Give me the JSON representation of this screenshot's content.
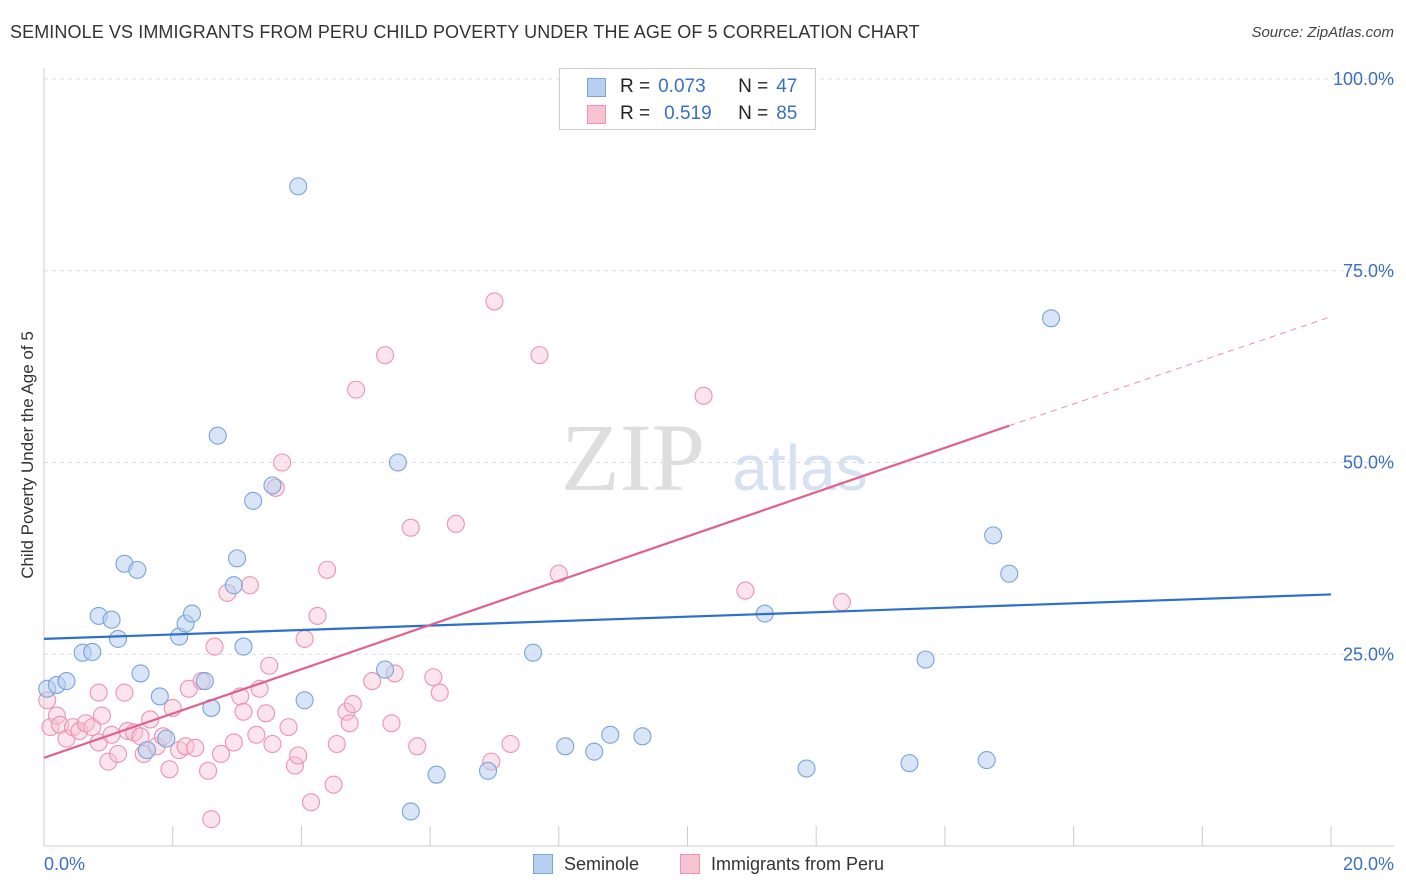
{
  "title": "SEMINOLE VS IMMIGRANTS FROM PERU CHILD POVERTY UNDER THE AGE OF 5 CORRELATION CHART",
  "source": "Source: ZipAtlas.com",
  "watermark": {
    "zip": "ZIP",
    "atlas": "atlas"
  },
  "legend": {
    "rows": [
      {
        "r_label": "R =",
        "r_value": "0.073",
        "n_label": "N =",
        "n_value": "47"
      },
      {
        "r_label": "R =",
        "r_value": "0.519",
        "n_label": "N =",
        "n_value": "85"
      }
    ]
  },
  "bottom_legend": {
    "seminole": "Seminole",
    "peru": "Immigrants from Peru"
  },
  "colors": {
    "seminole_fill": "#b8d0f0",
    "seminole_stroke": "#7aa3dc",
    "seminole_line": "#2e6fc9",
    "peru_fill": "#f7c3d3",
    "peru_stroke": "#ec93b0",
    "peru_line": "#e0608e",
    "tick_label": "#3a6fc4",
    "grid": "#dddddd"
  },
  "chart_data": {
    "type": "scatter",
    "title": "SEMINOLE VS IMMIGRANTS FROM PERU CHILD POVERTY UNDER THE AGE OF 5 CORRELATION CHART",
    "xlabel": "",
    "ylabel": "Child Poverty Under the Age of 5",
    "xlim": [
      0,
      20
    ],
    "ylim": [
      0,
      100
    ],
    "x_tick_labels": [
      {
        "value": 0,
        "label": "0.0%"
      },
      {
        "value": 20,
        "label": "20.0%"
      }
    ],
    "y_tick_labels": [
      {
        "value": 25,
        "label": "25.0%"
      },
      {
        "value": 50,
        "label": "50.0%"
      },
      {
        "value": 75,
        "label": "75.0%"
      },
      {
        "value": 100,
        "label": "100.0%"
      }
    ],
    "x_minor_ticks": [
      2,
      4,
      6,
      8,
      10,
      12,
      14,
      16,
      18,
      20
    ],
    "grid": true,
    "series": [
      {
        "name": "Seminole",
        "r": 0.073,
        "n": 47,
        "trend": {
          "x0": 0,
          "y0": 27.0,
          "x1": 20,
          "y1": 32.8,
          "dashed_to": null
        },
        "points": [
          [
            0.05,
            20.5
          ],
          [
            0.2,
            21.0
          ],
          [
            0.35,
            21.5
          ],
          [
            0.6,
            25.2
          ],
          [
            0.75,
            25.3
          ],
          [
            0.85,
            30.0
          ],
          [
            1.05,
            29.5
          ],
          [
            1.15,
            27.0
          ],
          [
            1.25,
            36.8
          ],
          [
            1.45,
            36.0
          ],
          [
            1.5,
            22.5
          ],
          [
            1.6,
            12.5
          ],
          [
            1.8,
            19.5
          ],
          [
            1.9,
            14.0
          ],
          [
            2.1,
            27.3
          ],
          [
            2.2,
            29.0
          ],
          [
            2.3,
            30.3
          ],
          [
            2.5,
            21.5
          ],
          [
            2.6,
            18.0
          ],
          [
            2.7,
            53.5
          ],
          [
            2.95,
            34.0
          ],
          [
            3.0,
            37.5
          ],
          [
            3.1,
            26.0
          ],
          [
            3.25,
            45.0
          ],
          [
            3.55,
            47.0
          ],
          [
            3.95,
            86.0
          ],
          [
            4.05,
            19.0
          ],
          [
            5.3,
            23.0
          ],
          [
            5.5,
            50.0
          ],
          [
            5.7,
            4.5
          ],
          [
            6.1,
            9.3
          ],
          [
            6.9,
            9.8
          ],
          [
            7.6,
            25.2
          ],
          [
            8.1,
            13.0
          ],
          [
            8.55,
            12.3
          ],
          [
            8.8,
            14.5
          ],
          [
            9.3,
            14.3
          ],
          [
            11.2,
            30.3
          ],
          [
            11.85,
            10.1
          ],
          [
            13.45,
            10.8
          ],
          [
            13.7,
            24.3
          ],
          [
            14.65,
            11.2
          ],
          [
            14.75,
            40.5
          ],
          [
            15.0,
            35.5
          ],
          [
            15.65,
            68.8
          ]
        ]
      },
      {
        "name": "Immigrants from Peru",
        "r": 0.519,
        "n": 85,
        "trend": {
          "x0": 0,
          "y0": 11.5,
          "x1": 15.0,
          "y1": 54.8,
          "dashed_to": {
            "x": 20,
            "y": 69.0
          }
        },
        "points": [
          [
            0.05,
            19.0
          ],
          [
            0.1,
            15.5
          ],
          [
            0.2,
            17.0
          ],
          [
            0.25,
            15.8
          ],
          [
            0.35,
            14.0
          ],
          [
            0.45,
            15.5
          ],
          [
            0.55,
            15.0
          ],
          [
            0.65,
            16.0
          ],
          [
            0.75,
            15.5
          ],
          [
            0.85,
            13.5
          ],
          [
            0.85,
            20.0
          ],
          [
            0.9,
            17.0
          ],
          [
            1.0,
            11.0
          ],
          [
            1.05,
            14.5
          ],
          [
            1.15,
            12.0
          ],
          [
            1.25,
            20.0
          ],
          [
            1.3,
            15.0
          ],
          [
            1.4,
            14.8
          ],
          [
            1.5,
            14.3
          ],
          [
            1.55,
            12.0
          ],
          [
            1.65,
            16.5
          ],
          [
            1.75,
            13.0
          ],
          [
            1.85,
            14.3
          ],
          [
            1.95,
            10.0
          ],
          [
            2.0,
            18.0
          ],
          [
            2.1,
            12.5
          ],
          [
            2.2,
            13.0
          ],
          [
            2.25,
            20.5
          ],
          [
            2.35,
            12.8
          ],
          [
            2.45,
            21.5
          ],
          [
            2.55,
            9.8
          ],
          [
            2.6,
            3.5
          ],
          [
            2.65,
            26.0
          ],
          [
            2.75,
            12.0
          ],
          [
            2.85,
            33.0
          ],
          [
            2.95,
            13.5
          ],
          [
            3.05,
            19.5
          ],
          [
            3.1,
            17.5
          ],
          [
            3.2,
            34.0
          ],
          [
            3.3,
            14.5
          ],
          [
            3.35,
            20.5
          ],
          [
            3.45,
            17.3
          ],
          [
            3.5,
            23.5
          ],
          [
            3.55,
            13.3
          ],
          [
            3.6,
            46.7
          ],
          [
            3.7,
            50.0
          ],
          [
            3.8,
            15.5
          ],
          [
            3.9,
            10.5
          ],
          [
            3.95,
            11.8
          ],
          [
            4.05,
            27.0
          ],
          [
            4.15,
            5.7
          ],
          [
            4.25,
            30.0
          ],
          [
            4.4,
            36.0
          ],
          [
            4.5,
            8.0
          ],
          [
            4.55,
            13.3
          ],
          [
            4.7,
            17.5
          ],
          [
            4.75,
            16.0
          ],
          [
            4.8,
            18.5
          ],
          [
            4.85,
            59.5
          ],
          [
            5.1,
            21.5
          ],
          [
            5.3,
            64.0
          ],
          [
            5.4,
            16.0
          ],
          [
            5.45,
            22.5
          ],
          [
            5.7,
            41.5
          ],
          [
            5.8,
            13.0
          ],
          [
            6.05,
            22.0
          ],
          [
            6.15,
            20.0
          ],
          [
            6.4,
            42.0
          ],
          [
            6.95,
            11.0
          ],
          [
            7.0,
            71.0
          ],
          [
            7.25,
            13.3
          ],
          [
            7.7,
            64.0
          ],
          [
            8.0,
            35.5
          ],
          [
            10.25,
            58.7
          ],
          [
            10.9,
            33.3
          ],
          [
            12.4,
            31.8
          ]
        ]
      }
    ]
  }
}
